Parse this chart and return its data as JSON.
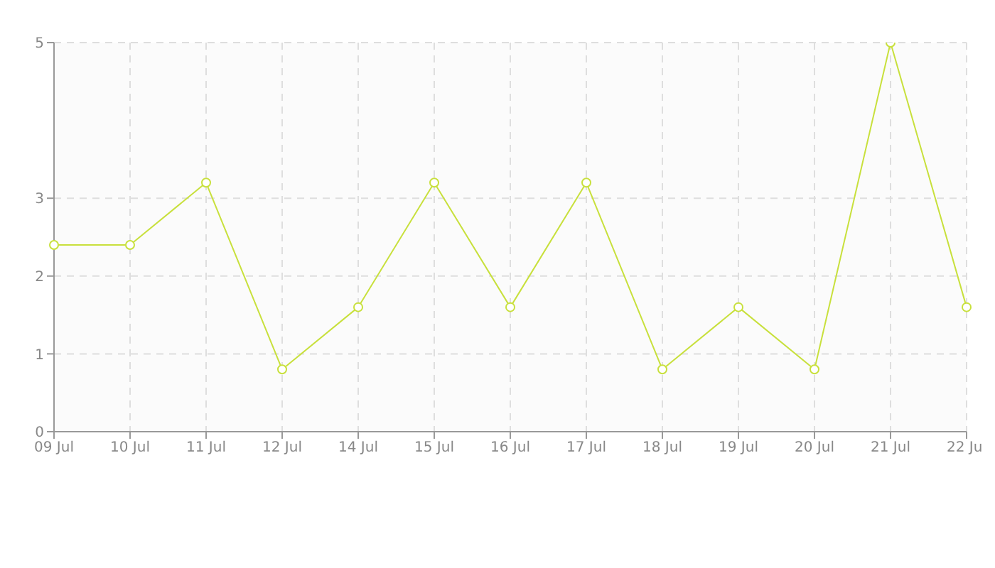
{
  "chart_data": {
    "type": "line",
    "categories": [
      "09 Jul",
      "10 Jul",
      "11 Jul",
      "12 Jul",
      "14 Jul",
      "15 Jul",
      "16 Jul",
      "17 Jul",
      "18 Jul",
      "19 Jul",
      "20 Jul",
      "21 Jul",
      "22 Jul"
    ],
    "series": [
      {
        "color": "#c8e03c",
        "values": [
          2.4,
          2.4,
          3.2,
          0.8,
          1.6,
          3.2,
          1.6,
          3.2,
          0.8,
          1.6,
          0.8,
          5,
          1.6
        ]
      }
    ],
    "ylim": [
      0,
      5
    ],
    "yticks": [
      0,
      1,
      2,
      3,
      5
    ],
    "grid": true,
    "marker": "circle",
    "line_style": "solid",
    "legend": false
  }
}
